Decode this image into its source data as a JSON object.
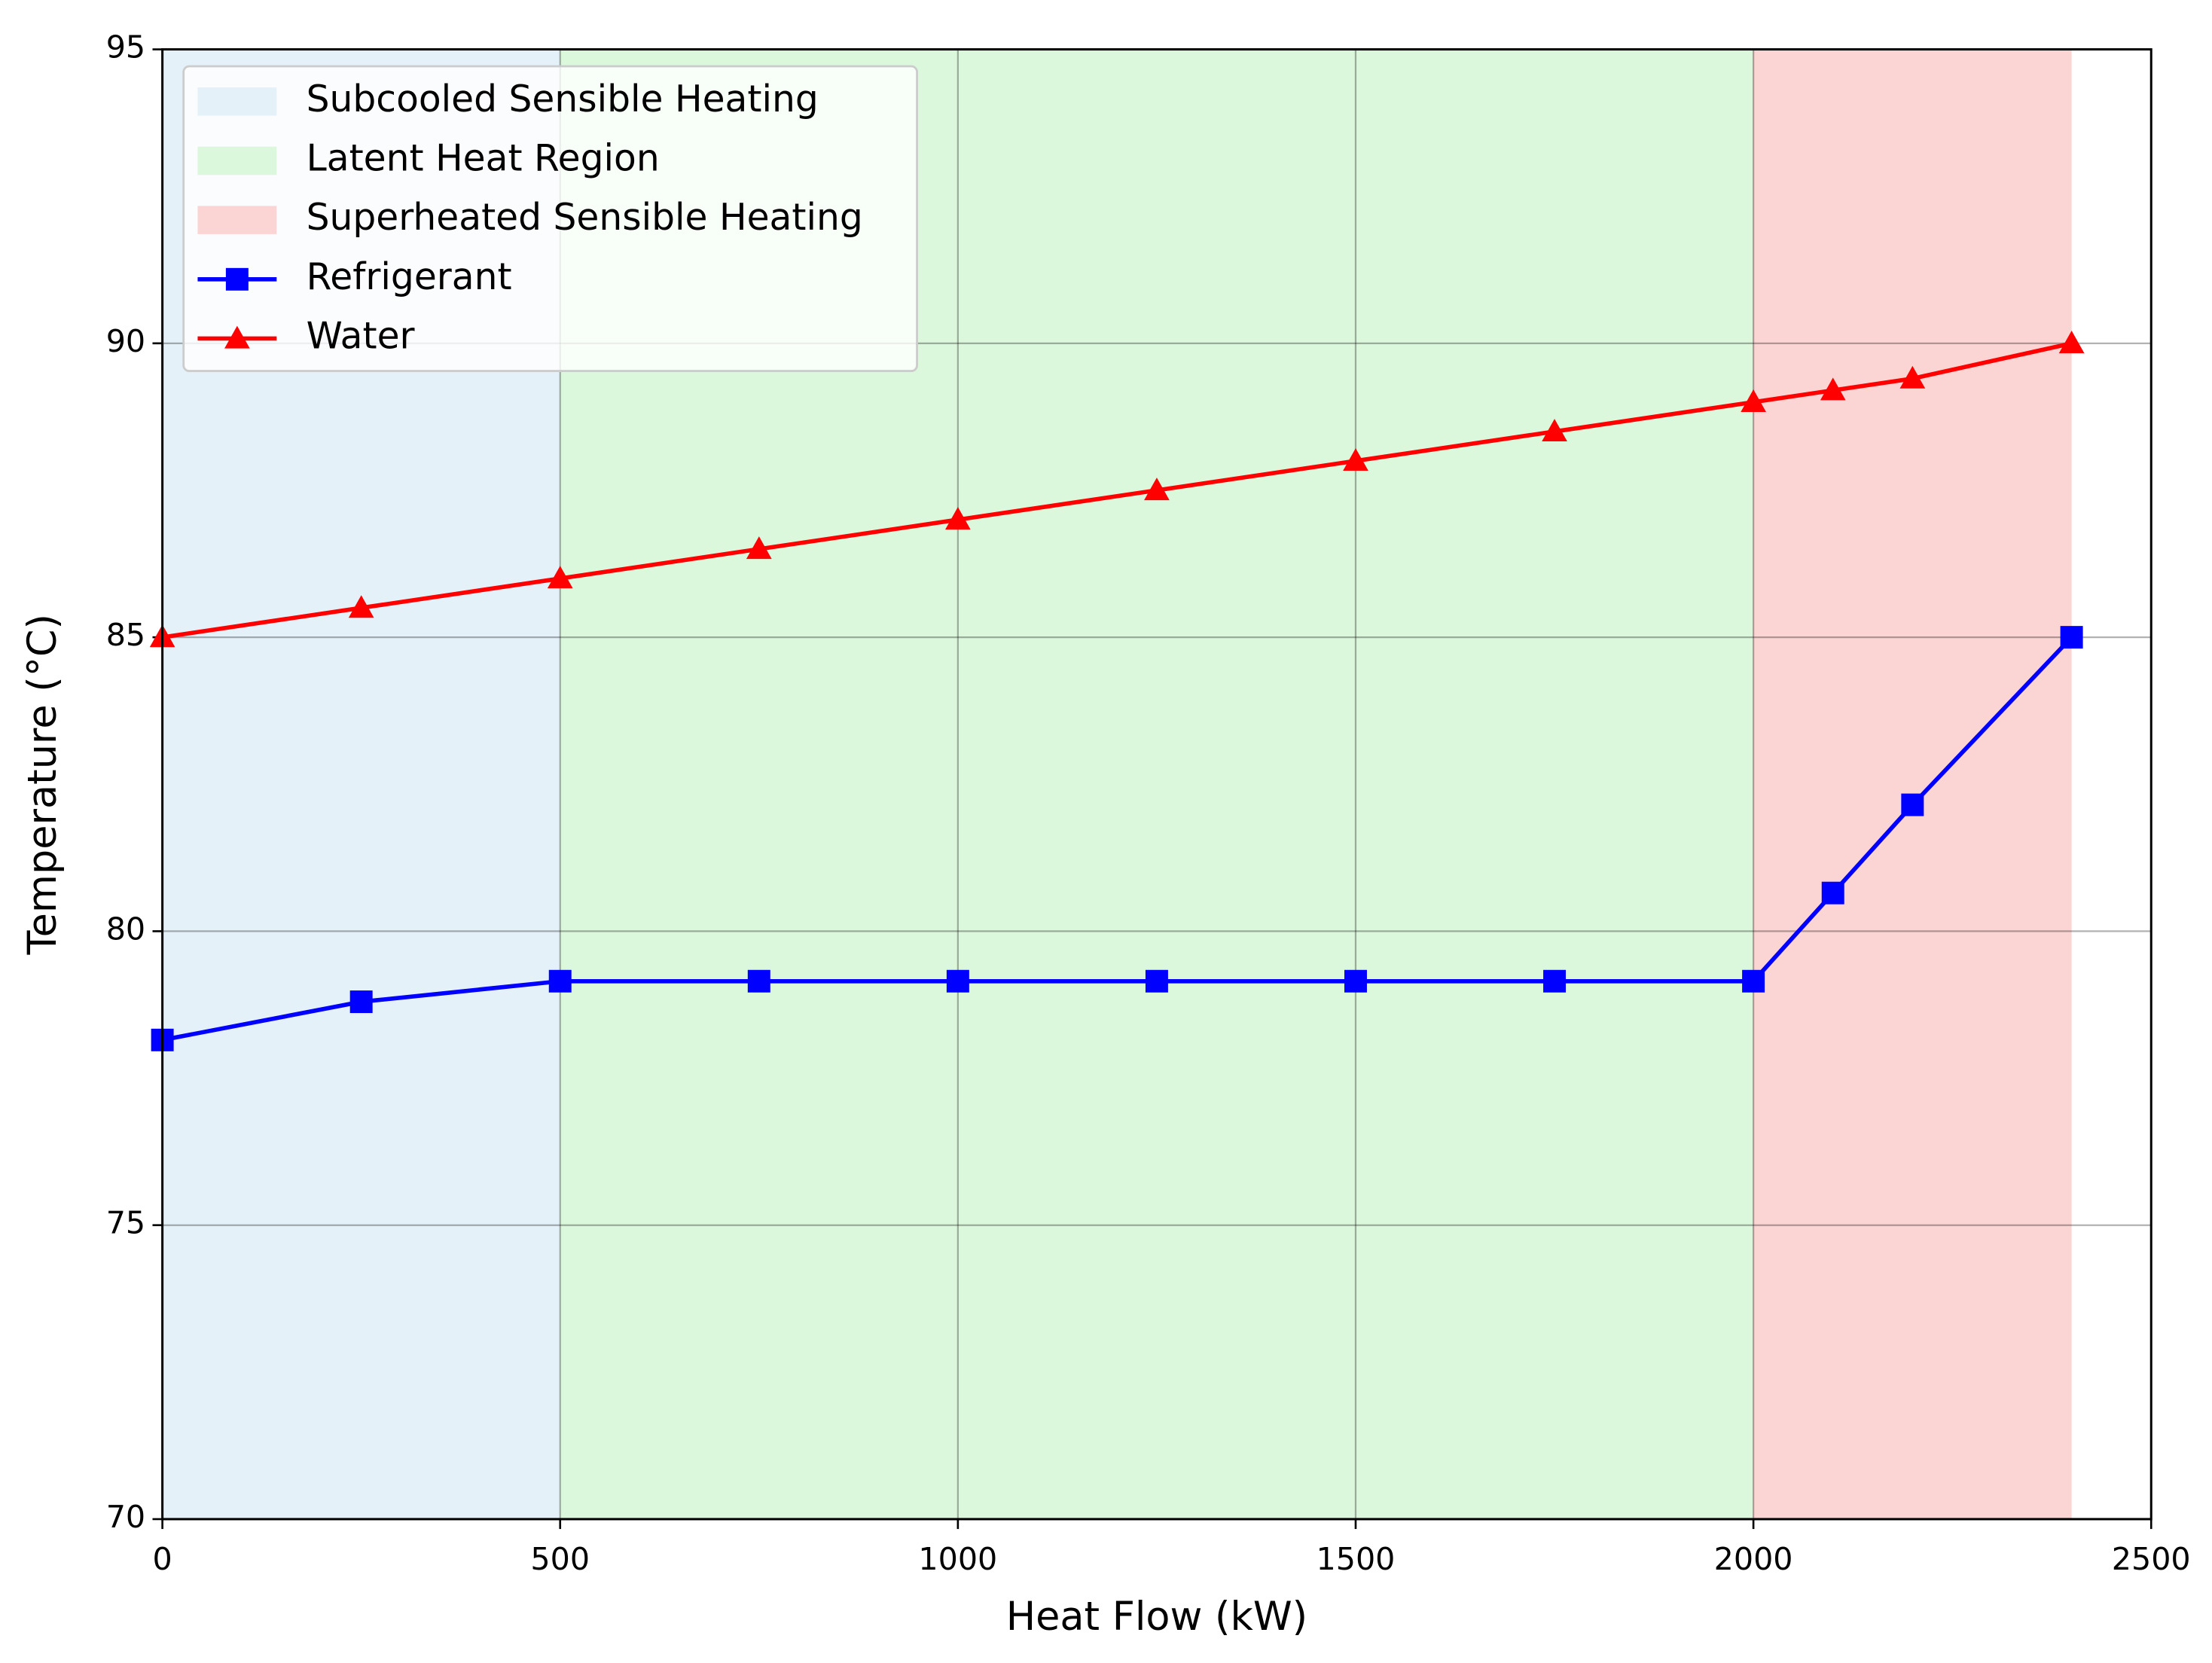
{
  "chart_data": {
    "type": "line",
    "xlabel": "Heat Flow (kW)",
    "ylabel": "Temperature (°C)",
    "x": [
      0,
      250,
      500,
      750,
      1000,
      1250,
      1500,
      1750,
      2000,
      2100,
      2200,
      2400
    ],
    "regions": [
      {
        "name": "Subcooled Sensible Heating",
        "color": "#e4f1f8",
        "range": [
          0,
          500
        ]
      },
      {
        "name": "Latent Heat Region",
        "color": "#dbf7dc",
        "range": [
          500,
          2000
        ]
      },
      {
        "name": "Superheated Sensible Heating",
        "color": "#fbd5d3",
        "range": [
          2000,
          2400
        ]
      }
    ],
    "series": [
      {
        "name": "Refrigerant",
        "color": "#0000ff",
        "marker": "square",
        "values": [
          78.15,
          78.8,
          79.15,
          79.15,
          79.15,
          79.15,
          79.15,
          79.15,
          79.15,
          80.65,
          82.15,
          85
        ]
      },
      {
        "name": "Water",
        "color": "#ff0000",
        "marker": "triangle",
        "values": [
          85,
          85.5,
          86,
          86.5,
          87,
          87.5,
          88,
          88.5,
          89,
          89.2,
          89.4,
          90
        ]
      }
    ],
    "xlim": [
      0,
      2500
    ],
    "xticks": [
      0,
      500,
      1000,
      1500,
      2000,
      2500
    ],
    "ylim": [
      70,
      95
    ],
    "yticks": [
      70,
      75,
      80,
      85,
      90,
      95
    ],
    "grid": true,
    "legend": "upper left"
  }
}
